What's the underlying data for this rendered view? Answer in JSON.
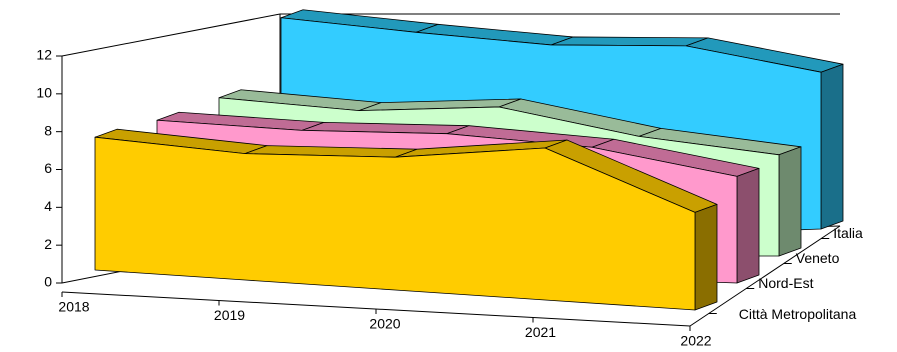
{
  "chart_data": {
    "type": "area3d",
    "categories": [
      "2018",
      "2019",
      "2020",
      "2021",
      "2022"
    ],
    "series": [
      {
        "name": "Città Metropolitana",
        "color": "#ffcc00",
        "top_color": "#c9a000",
        "side_color": "#8a6e00",
        "values": [
          8.3,
          7.9,
          8.3,
          9.5,
          6.1
        ]
      },
      {
        "name": "Nord-Est",
        "color": "#ff99cc",
        "top_color": "#c06c95",
        "side_color": "#8c4f6d",
        "values": [
          8.3,
          8.0,
          8.1,
          7.6,
          6.2
        ]
      },
      {
        "name": "Veneto",
        "color": "#ccffcc",
        "top_color": "#99bb99",
        "side_color": "#6e8a6e",
        "values": [
          8.6,
          7.9,
          8.1,
          6.5,
          5.5
        ]
      },
      {
        "name": "Italia",
        "color": "#33ccff",
        "top_color": "#2299bb",
        "side_color": "#1a6f8a",
        "values": [
          11.8,
          10.8,
          9.9,
          9.6,
          8.0
        ]
      }
    ],
    "ylim": [
      0,
      12
    ],
    "yticks": [
      0,
      2,
      4,
      6,
      8,
      10,
      12
    ]
  }
}
